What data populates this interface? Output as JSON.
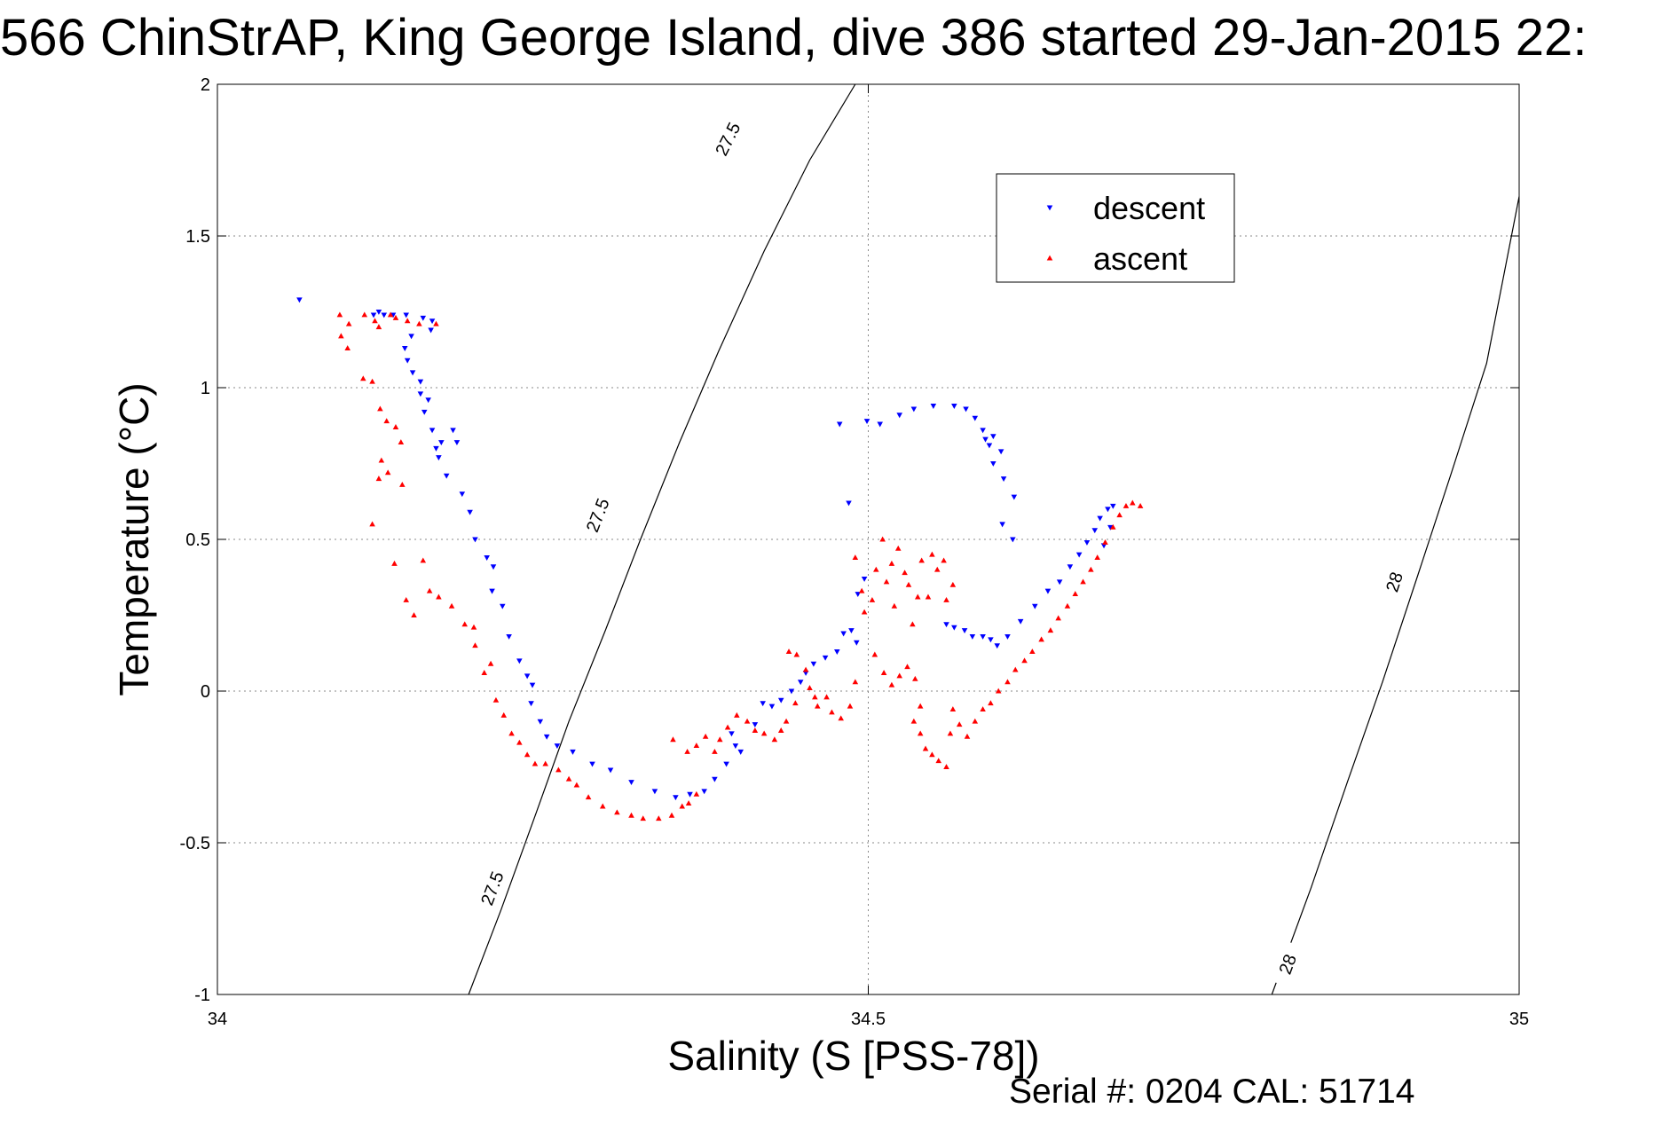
{
  "chart_data": {
    "type": "scatter",
    "title": "566 ChinStrAP, King George Island, dive 386 started 29-Jan-2015 22:",
    "xlabel": "Salinity (S [PSS-78])",
    "ylabel": "Temperature (°C)",
    "footer": "Serial #: 0204  CAL: 51714",
    "xlim": [
      34,
      35
    ],
    "ylim": [
      -1,
      2
    ],
    "xticks": [
      34,
      34.5,
      35
    ],
    "xtick_labels": [
      "34",
      "34.5",
      "35"
    ],
    "yticks": [
      -1,
      -0.5,
      0,
      0.5,
      1,
      1.5,
      2
    ],
    "ytick_labels": [
      "-1",
      "-0.5",
      "0",
      "0.5",
      "1",
      "1.5",
      "2"
    ],
    "grid": true,
    "legend_position": "top-right",
    "contours": [
      {
        "level": "27.5",
        "points": [
          [
            34.193,
            -1
          ],
          [
            34.218,
            -0.72
          ],
          [
            34.245,
            -0.4
          ],
          [
            34.27,
            -0.1
          ],
          [
            34.298,
            0.2
          ],
          [
            34.325,
            0.5
          ],
          [
            34.355,
            0.82
          ],
          [
            34.385,
            1.12
          ],
          [
            34.42,
            1.45
          ],
          [
            34.455,
            1.75
          ],
          [
            34.49,
            2
          ]
        ],
        "labels": [
          [
            34.211,
            -0.65
          ],
          [
            34.292,
            0.58
          ],
          [
            34.392,
            1.82
          ]
        ]
      },
      {
        "level": "28",
        "points": [
          [
            34.81,
            -1
          ],
          [
            34.84,
            -0.65
          ],
          [
            34.868,
            -0.3
          ],
          [
            34.895,
            0.03
          ],
          [
            34.922,
            0.38
          ],
          [
            34.948,
            0.72
          ],
          [
            34.975,
            1.08
          ],
          [
            35,
            1.63
          ]
        ],
        "labels": [
          [
            34.822,
            -0.9
          ],
          [
            34.904,
            0.36
          ]
        ]
      }
    ],
    "series": [
      {
        "name": "descent",
        "color": "#0000ff",
        "marker": "triangle-down",
        "points": [
          [
            34.063,
            1.29
          ],
          [
            34.12,
            1.24
          ],
          [
            34.124,
            1.25
          ],
          [
            34.128,
            1.24
          ],
          [
            34.135,
            1.24
          ],
          [
            34.145,
            1.24
          ],
          [
            34.158,
            1.23
          ],
          [
            34.165,
            1.22
          ],
          [
            34.164,
            1.19
          ],
          [
            34.149,
            1.17
          ],
          [
            34.144,
            1.13
          ],
          [
            34.146,
            1.09
          ],
          [
            34.15,
            1.05
          ],
          [
            34.156,
            1.02
          ],
          [
            34.156,
            0.98
          ],
          [
            34.162,
            0.96
          ],
          [
            34.159,
            0.92
          ],
          [
            34.165,
            0.86
          ],
          [
            34.172,
            0.82
          ],
          [
            34.168,
            0.8
          ],
          [
            34.17,
            0.77
          ],
          [
            34.176,
            0.71
          ],
          [
            34.181,
            0.86
          ],
          [
            34.184,
            0.82
          ],
          [
            34.188,
            0.65
          ],
          [
            34.194,
            0.59
          ],
          [
            34.198,
            0.5
          ],
          [
            34.207,
            0.44
          ],
          [
            34.212,
            0.41
          ],
          [
            34.211,
            0.33
          ],
          [
            34.219,
            0.28
          ],
          [
            34.224,
            0.18
          ],
          [
            34.232,
            0.1
          ],
          [
            34.238,
            0.05
          ],
          [
            34.242,
            0.02
          ],
          [
            34.241,
            -0.04
          ],
          [
            34.248,
            -0.1
          ],
          [
            34.253,
            -0.15
          ],
          [
            34.261,
            -0.18
          ],
          [
            34.273,
            -0.2
          ],
          [
            34.288,
            -0.24
          ],
          [
            34.302,
            -0.26
          ],
          [
            34.318,
            -0.3
          ],
          [
            34.336,
            -0.33
          ],
          [
            34.352,
            -0.35
          ],
          [
            34.363,
            -0.34
          ],
          [
            34.374,
            -0.33
          ],
          [
            34.382,
            -0.29
          ],
          [
            34.391,
            -0.24
          ],
          [
            34.402,
            -0.2
          ],
          [
            34.395,
            -0.14
          ],
          [
            34.398,
            -0.18
          ],
          [
            34.413,
            -0.11
          ],
          [
            34.419,
            -0.04
          ],
          [
            34.426,
            -0.05
          ],
          [
            34.433,
            -0.03
          ],
          [
            34.441,
            0
          ],
          [
            34.448,
            0.03
          ],
          [
            34.452,
            0.06
          ],
          [
            34.458,
            0.09
          ],
          [
            34.467,
            0.11
          ],
          [
            34.476,
            0.13
          ],
          [
            34.481,
            0.19
          ],
          [
            34.487,
            0.2
          ],
          [
            34.491,
            0.16
          ],
          [
            34.485,
            0.62
          ],
          [
            34.478,
            0.88
          ],
          [
            34.499,
            0.89
          ],
          [
            34.492,
            0.32
          ],
          [
            34.497,
            0.37
          ],
          [
            34.509,
            0.88
          ],
          [
            34.524,
            0.91
          ],
          [
            34.535,
            0.93
          ],
          [
            34.55,
            0.94
          ],
          [
            34.566,
            0.94
          ],
          [
            34.575,
            0.93
          ],
          [
            34.582,
            0.9
          ],
          [
            34.588,
            0.86
          ],
          [
            34.59,
            0.83
          ],
          [
            34.593,
            0.81
          ],
          [
            34.596,
            0.84
          ],
          [
            34.602,
            0.79
          ],
          [
            34.596,
            0.75
          ],
          [
            34.604,
            0.7
          ],
          [
            34.612,
            0.64
          ],
          [
            34.603,
            0.55
          ],
          [
            34.611,
            0.5
          ],
          [
            34.56,
            0.22
          ],
          [
            34.566,
            0.21
          ],
          [
            34.574,
            0.2
          ],
          [
            34.58,
            0.18
          ],
          [
            34.588,
            0.18
          ],
          [
            34.594,
            0.17
          ],
          [
            34.599,
            0.15
          ],
          [
            34.607,
            0.18
          ],
          [
            34.617,
            0.23
          ],
          [
            34.628,
            0.28
          ],
          [
            34.638,
            0.33
          ],
          [
            34.647,
            0.36
          ],
          [
            34.655,
            0.41
          ],
          [
            34.662,
            0.45
          ],
          [
            34.668,
            0.49
          ],
          [
            34.674,
            0.53
          ],
          [
            34.678,
            0.57
          ],
          [
            34.684,
            0.6
          ],
          [
            34.688,
            0.61
          ],
          [
            34.681,
            0.48
          ],
          [
            34.686,
            0.54
          ]
        ]
      },
      {
        "name": "ascent",
        "color": "#ff0000",
        "marker": "triangle-up",
        "points": [
          [
            34.094,
            1.24
          ],
          [
            34.101,
            1.21
          ],
          [
            34.113,
            1.24
          ],
          [
            34.121,
            1.22
          ],
          [
            34.124,
            1.2
          ],
          [
            34.133,
            1.24
          ],
          [
            34.137,
            1.23
          ],
          [
            34.146,
            1.22
          ],
          [
            34.155,
            1.21
          ],
          [
            34.168,
            1.21
          ],
          [
            34.095,
            1.17
          ],
          [
            34.1,
            1.13
          ],
          [
            34.112,
            1.03
          ],
          [
            34.119,
            1.02
          ],
          [
            34.125,
            0.93
          ],
          [
            34.13,
            0.89
          ],
          [
            34.137,
            0.87
          ],
          [
            34.141,
            0.82
          ],
          [
            34.126,
            0.76
          ],
          [
            34.131,
            0.72
          ],
          [
            34.142,
            0.68
          ],
          [
            34.124,
            0.7
          ],
          [
            34.119,
            0.55
          ],
          [
            34.136,
            0.42
          ],
          [
            34.145,
            0.3
          ],
          [
            34.151,
            0.25
          ],
          [
            34.158,
            0.43
          ],
          [
            34.163,
            0.33
          ],
          [
            34.17,
            0.31
          ],
          [
            34.18,
            0.28
          ],
          [
            34.19,
            0.22
          ],
          [
            34.197,
            0.21
          ],
          [
            34.198,
            0.15
          ],
          [
            34.205,
            0.06
          ],
          [
            34.21,
            0.09
          ],
          [
            34.214,
            -0.03
          ],
          [
            34.22,
            -0.08
          ],
          [
            34.226,
            -0.14
          ],
          [
            34.232,
            -0.17
          ],
          [
            34.238,
            -0.21
          ],
          [
            34.244,
            -0.24
          ],
          [
            34.252,
            -0.24
          ],
          [
            34.262,
            -0.26
          ],
          [
            34.27,
            -0.29
          ],
          [
            34.276,
            -0.31
          ],
          [
            34.285,
            -0.35
          ],
          [
            34.296,
            -0.38
          ],
          [
            34.307,
            -0.4
          ],
          [
            34.318,
            -0.41
          ],
          [
            34.327,
            -0.42
          ],
          [
            34.339,
            -0.42
          ],
          [
            34.349,
            -0.41
          ],
          [
            34.357,
            -0.38
          ],
          [
            34.362,
            -0.37
          ],
          [
            34.368,
            -0.34
          ],
          [
            34.35,
            -0.16
          ],
          [
            34.361,
            -0.2
          ],
          [
            34.368,
            -0.18
          ],
          [
            34.375,
            -0.15
          ],
          [
            34.382,
            -0.2
          ],
          [
            34.386,
            -0.16
          ],
          [
            34.392,
            -0.12
          ],
          [
            34.399,
            -0.08
          ],
          [
            34.407,
            -0.1
          ],
          [
            34.413,
            -0.13
          ],
          [
            34.42,
            -0.14
          ],
          [
            34.428,
            -0.16
          ],
          [
            34.433,
            -0.13
          ],
          [
            34.437,
            -0.1
          ],
          [
            34.439,
            0.13
          ],
          [
            34.445,
            0.12
          ],
          [
            34.452,
            0.07
          ],
          [
            34.455,
            0.01
          ],
          [
            34.459,
            -0.02
          ],
          [
            34.444,
            -0.04
          ],
          [
            34.461,
            -0.05
          ],
          [
            34.468,
            -0.02
          ],
          [
            34.472,
            -0.07
          ],
          [
            34.479,
            -0.09
          ],
          [
            34.486,
            -0.05
          ],
          [
            34.49,
            0.03
          ],
          [
            34.49,
            0.44
          ],
          [
            34.495,
            0.33
          ],
          [
            34.497,
            0.26
          ],
          [
            34.503,
            0.3
          ],
          [
            34.506,
            0.4
          ],
          [
            34.511,
            0.5
          ],
          [
            34.514,
            0.36
          ],
          [
            34.518,
            0.42
          ],
          [
            34.52,
            0.28
          ],
          [
            34.523,
            0.47
          ],
          [
            34.528,
            0.39
          ],
          [
            34.531,
            0.35
          ],
          [
            34.534,
            0.22
          ],
          [
            34.538,
            0.31
          ],
          [
            34.541,
            0.43
          ],
          [
            34.546,
            0.31
          ],
          [
            34.549,
            0.45
          ],
          [
            34.553,
            0.4
          ],
          [
            34.558,
            0.43
          ],
          [
            34.56,
            0.3
          ],
          [
            34.565,
            0.35
          ],
          [
            34.505,
            0.12
          ],
          [
            34.512,
            0.06
          ],
          [
            34.518,
            0.02
          ],
          [
            34.524,
            0.05
          ],
          [
            34.53,
            0.08
          ],
          [
            34.536,
            0.04
          ],
          [
            34.54,
            -0.05
          ],
          [
            34.535,
            -0.1
          ],
          [
            34.54,
            -0.14
          ],
          [
            34.544,
            -0.19
          ],
          [
            34.549,
            -0.21
          ],
          [
            34.554,
            -0.23
          ],
          [
            34.56,
            -0.25
          ],
          [
            34.563,
            -0.14
          ],
          [
            34.565,
            -0.06
          ],
          [
            34.57,
            -0.11
          ],
          [
            34.576,
            -0.15
          ],
          [
            34.582,
            -0.1
          ],
          [
            34.588,
            -0.06
          ],
          [
            34.594,
            -0.04
          ],
          [
            34.6,
            0
          ],
          [
            34.607,
            0.03
          ],
          [
            34.613,
            0.07
          ],
          [
            34.62,
            0.1
          ],
          [
            34.626,
            0.13
          ],
          [
            34.633,
            0.17
          ],
          [
            34.64,
            0.2
          ],
          [
            34.646,
            0.24
          ],
          [
            34.653,
            0.28
          ],
          [
            34.659,
            0.32
          ],
          [
            34.665,
            0.36
          ],
          [
            34.671,
            0.4
          ],
          [
            34.676,
            0.44
          ],
          [
            34.682,
            0.49
          ],
          [
            34.688,
            0.54
          ],
          [
            34.693,
            0.58
          ],
          [
            34.698,
            0.61
          ],
          [
            34.703,
            0.62
          ],
          [
            34.709,
            0.61
          ]
        ]
      }
    ]
  }
}
